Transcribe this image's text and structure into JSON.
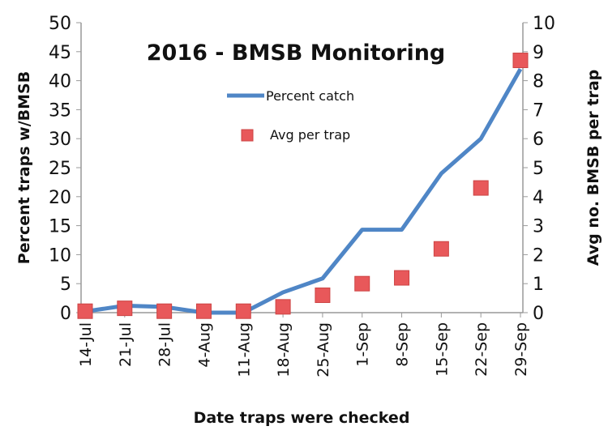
{
  "chart_data": {
    "type": "line",
    "title": "2016 - BMSB Monitoring",
    "xlabel": "Date traps were checked",
    "ylabel": "Percent traps w/BMSB",
    "y2label": "Avg no. BMSB per trap",
    "categories": [
      "14-Jul",
      "21-Jul",
      "28-Jul",
      "4-Aug",
      "11-Aug",
      "18-Aug",
      "25-Aug",
      "1-Sep",
      "8-Sep",
      "15-Sep",
      "22-Sep",
      "29-Sep"
    ],
    "ylim": [
      0,
      50
    ],
    "yticks": [
      "0",
      "5",
      "10",
      "15",
      "20",
      "25",
      "30",
      "35",
      "40",
      "45",
      "50"
    ],
    "y2lim": [
      0,
      10
    ],
    "y2ticks": [
      "0",
      "1",
      "2",
      "3",
      "4",
      "5",
      "6",
      "7",
      "8",
      "9",
      "10"
    ],
    "grid": false,
    "legend_placement": "top-center",
    "series": [
      {
        "name": "Percent catch",
        "type": "line",
        "axis": "left",
        "color": "#4f86c6",
        "values": [
          0.2,
          1.2,
          1.0,
          0,
          0,
          3.5,
          5.9,
          14.3,
          14.3,
          24,
          30,
          42
        ]
      },
      {
        "name": "Avg per trap",
        "type": "scatter",
        "axis": "right",
        "color": "#e8585a",
        "values": [
          0.05,
          0.15,
          0.05,
          0.05,
          0.05,
          0.2,
          0.6,
          1.0,
          1.2,
          2.2,
          4.3,
          8.7
        ]
      }
    ]
  }
}
